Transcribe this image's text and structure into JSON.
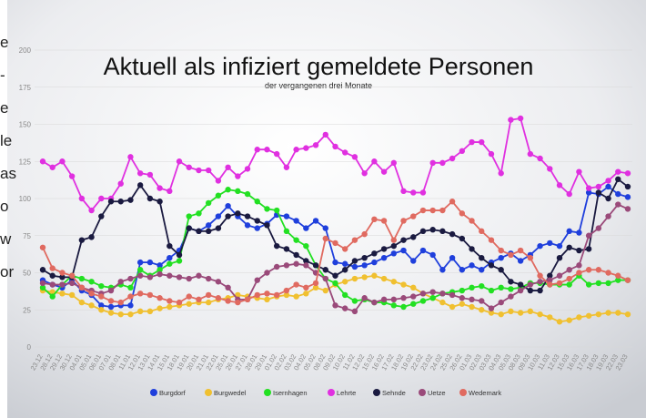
{
  "chart_data": {
    "type": "line",
    "title": "Aktuell als infiziert gemeldete Personen",
    "subtitle": "der vergangenen drei Monate",
    "side_fragments": [
      "e",
      "-",
      "e",
      "le",
      "as",
      "o",
      "w",
      "or"
    ],
    "categories": [
      "23.12",
      "28.12",
      "29.12",
      "30.12",
      "04.01",
      "05.01",
      "06.01",
      "07.01",
      "08.01",
      "11.01",
      "12.01",
      "13.01",
      "14.01",
      "15.01",
      "18.01",
      "19.01",
      "20.01",
      "21.01",
      "22.01",
      "25.01",
      "26.01",
      "27.01",
      "28.01",
      "29.01",
      "01.02",
      "02.02",
      "03.02",
      "04.02",
      "05.02",
      "08.02",
      "09.02",
      "10.02",
      "11.02",
      "12.02",
      "15.02",
      "16.02",
      "17.02",
      "18.02",
      "19.02",
      "22.02",
      "23.02",
      "24.02",
      "25.02",
      "26.02",
      "01.03",
      "02.03",
      "03.03",
      "04.03",
      "05.03",
      "08.03",
      "09.03",
      "10.03",
      "11.03",
      "12.03",
      "15.03",
      "16.03",
      "17.03",
      "18.03",
      "19.03",
      "22.03",
      "23.03"
    ],
    "ylim": [
      0,
      200
    ],
    "yticks": [
      0,
      25,
      50,
      75,
      100,
      125,
      150,
      175,
      200
    ],
    "grid": true,
    "legend": "bottom",
    "series": [
      {
        "name": "Burgdorf",
        "color": "#1f3fdc",
        "values": [
          45,
          42,
          40,
          45,
          38,
          35,
          28,
          27,
          28,
          28,
          57,
          57,
          55,
          60,
          65,
          80,
          78,
          82,
          88,
          95,
          88,
          82,
          80,
          83,
          89,
          88,
          85,
          80,
          85,
          80,
          57,
          56,
          54,
          55,
          57,
          60,
          63,
          65,
          58,
          65,
          62,
          52,
          60,
          52,
          55,
          52,
          57,
          60,
          63,
          58,
          62,
          68,
          70,
          68,
          78,
          77,
          104,
          103,
          108,
          103,
          101
        ]
      },
      {
        "name": "Burgwedel",
        "color": "#f0c030",
        "values": [
          38,
          37,
          36,
          35,
          30,
          28,
          25,
          23,
          22,
          22,
          24,
          24,
          26,
          27,
          28,
          29,
          30,
          30,
          32,
          33,
          35,
          34,
          33,
          32,
          34,
          35,
          34,
          36,
          40,
          38,
          42,
          44,
          46,
          47,
          48,
          46,
          44,
          42,
          40,
          36,
          33,
          30,
          27,
          29,
          27,
          25,
          23,
          22,
          24,
          23,
          24,
          22,
          20,
          17,
          18,
          20,
          21,
          22,
          23,
          23,
          22
        ]
      },
      {
        "name": "Isernhagen",
        "color": "#22e022",
        "values": [
          40,
          34,
          42,
          48,
          46,
          44,
          41,
          40,
          42,
          40,
          52,
          48,
          52,
          56,
          58,
          88,
          90,
          97,
          102,
          106,
          105,
          103,
          98,
          93,
          92,
          78,
          72,
          68,
          55,
          46,
          43,
          35,
          31,
          32,
          30,
          30,
          28,
          27,
          29,
          31,
          33,
          36,
          37,
          38,
          40,
          41,
          38,
          40,
          39,
          40,
          43,
          43,
          42,
          42,
          42,
          48,
          42,
          43,
          43,
          45,
          45
        ]
      },
      {
        "name": "Lehrte",
        "color": "#e030e0",
        "values": [
          125,
          121,
          125,
          115,
          100,
          92,
          100,
          100,
          110,
          128,
          117,
          116,
          107,
          105,
          125,
          121,
          119,
          119,
          112,
          121,
          115,
          120,
          133,
          133,
          130,
          121,
          133,
          134,
          136,
          143,
          135,
          131,
          128,
          117,
          125,
          118,
          124,
          105,
          104,
          104,
          124,
          124,
          127,
          132,
          138,
          138,
          130,
          117,
          153,
          154,
          130,
          127,
          120,
          109,
          103,
          118,
          107,
          108,
          112,
          118,
          117
        ]
      },
      {
        "name": "Sehnde",
        "color": "#1a1a40",
        "values": [
          52,
          48,
          47,
          47,
          72,
          74,
          88,
          98,
          98,
          99,
          109,
          100,
          98,
          68,
          62,
          80,
          78,
          78,
          80,
          88,
          90,
          88,
          85,
          82,
          68,
          66,
          62,
          58,
          55,
          52,
          48,
          52,
          58,
          60,
          63,
          66,
          68,
          72,
          74,
          78,
          79,
          78,
          76,
          73,
          66,
          60,
          55,
          52,
          44,
          42,
          38,
          38,
          48,
          60,
          67,
          65,
          66,
          104,
          100,
          113,
          108
        ]
      },
      {
        "name": "Uetze",
        "color": "#9a4a7a",
        "values": [
          43,
          42,
          42,
          43,
          40,
          38,
          36,
          38,
          44,
          46,
          48,
          47,
          49,
          48,
          47,
          46,
          48,
          46,
          44,
          40,
          32,
          32,
          45,
          50,
          54,
          55,
          56,
          55,
          50,
          46,
          28,
          26,
          24,
          33,
          30,
          32,
          32,
          33,
          34,
          36,
          37,
          36,
          35,
          33,
          32,
          31,
          26,
          30,
          34,
          38,
          42,
          44,
          45,
          48,
          52,
          55,
          75,
          80,
          88,
          96,
          93
        ]
      },
      {
        "name": "Wedemark",
        "color": "#e06a60",
        "values": [
          67,
          53,
          50,
          48,
          40,
          36,
          34,
          31,
          30,
          34,
          36,
          35,
          33,
          31,
          30,
          34,
          32,
          35,
          33,
          31,
          30,
          32,
          35,
          36,
          35,
          38,
          42,
          40,
          43,
          73,
          70,
          66,
          72,
          76,
          86,
          85,
          72,
          85,
          88,
          92,
          92,
          92,
          98,
          90,
          85,
          78,
          72,
          65,
          62,
          65,
          60,
          48,
          42,
          43,
          46,
          50,
          52,
          52,
          50,
          48,
          45
        ]
      }
    ]
  }
}
